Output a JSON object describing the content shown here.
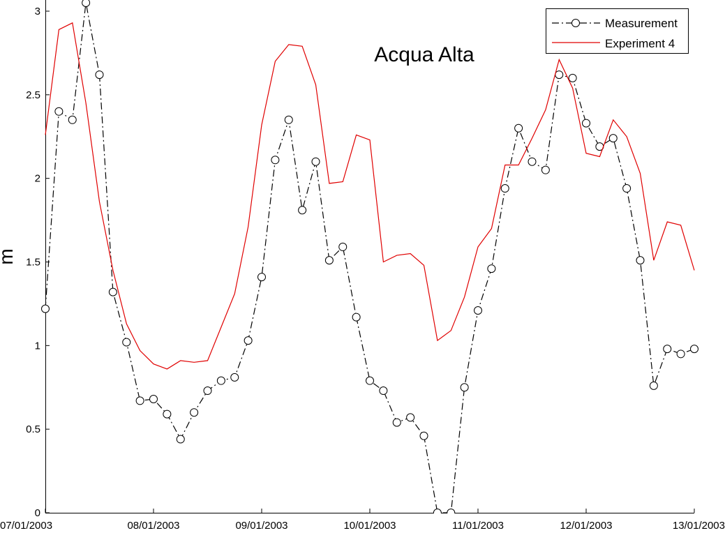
{
  "chart_data": {
    "type": "line",
    "title": "Acqua Alta",
    "xlabel": "",
    "ylabel": "m",
    "ylim": [
      0,
      3
    ],
    "xlim": [
      "07/01/2003 00:00",
      "13/01/2003 00:00"
    ],
    "yticks": [
      "0",
      "0.5",
      "1",
      "1.5",
      "2",
      "2.5",
      "3"
    ],
    "xticks": [
      "07/01/2003",
      "08/01/2003",
      "09/01/2003",
      "10/01/2003",
      "11/01/2003",
      "12/01/2003",
      "13/01/2003"
    ],
    "grid": false,
    "legend_position": "top-right",
    "series": [
      {
        "name": "Measurement",
        "color": "#000000",
        "line_style": "dash-dot",
        "marker": "circle",
        "points": [
          [
            "07/01/2003 00:00",
            1.22
          ],
          [
            "07/01/2003 03:00",
            2.4
          ],
          [
            "07/01/2003 06:00",
            2.35
          ],
          [
            "07/01/2003 09:00",
            3.05
          ],
          [
            "07/01/2003 12:00",
            2.62
          ],
          [
            "07/01/2003 15:00",
            1.32
          ],
          [
            "07/01/2003 18:00",
            1.02
          ],
          [
            "07/01/2003 21:00",
            0.67
          ],
          [
            "08/01/2003 00:00",
            0.68
          ],
          [
            "08/01/2003 03:00",
            0.59
          ],
          [
            "08/01/2003 06:00",
            0.44
          ],
          [
            "08/01/2003 09:00",
            0.6
          ],
          [
            "08/01/2003 12:00",
            0.73
          ],
          [
            "08/01/2003 15:00",
            0.79
          ],
          [
            "08/01/2003 18:00",
            0.81
          ],
          [
            "08/01/2003 21:00",
            1.03
          ],
          [
            "09/01/2003 00:00",
            1.41
          ],
          [
            "09/01/2003 03:00",
            2.11
          ],
          [
            "09/01/2003 06:00",
            2.35
          ],
          [
            "09/01/2003 09:00",
            1.81
          ],
          [
            "09/01/2003 12:00",
            2.1
          ],
          [
            "09/01/2003 15:00",
            1.51
          ],
          [
            "09/01/2003 18:00",
            1.59
          ],
          [
            "09/01/2003 21:00",
            1.17
          ],
          [
            "10/01/2003 00:00",
            0.79
          ],
          [
            "10/01/2003 03:00",
            0.73
          ],
          [
            "10/01/2003 06:00",
            0.54
          ],
          [
            "10/01/2003 09:00",
            0.57
          ],
          [
            "10/01/2003 12:00",
            0.46
          ],
          [
            "10/01/2003 15:00",
            0.0
          ],
          [
            "10/01/2003 18:00",
            0.0
          ],
          [
            "10/01/2003 21:00",
            0.75
          ],
          [
            "11/01/2003 00:00",
            1.21
          ],
          [
            "11/01/2003 03:00",
            1.46
          ],
          [
            "11/01/2003 06:00",
            1.94
          ],
          [
            "11/01/2003 09:00",
            2.3
          ],
          [
            "11/01/2003 12:00",
            2.1
          ],
          [
            "11/01/2003 15:00",
            2.05
          ],
          [
            "11/01/2003 18:00",
            2.62
          ],
          [
            "11/01/2003 21:00",
            2.6
          ],
          [
            "12/01/2003 00:00",
            2.33
          ],
          [
            "12/01/2003 03:00",
            2.19
          ],
          [
            "12/01/2003 06:00",
            2.24
          ],
          [
            "12/01/2003 09:00",
            1.94
          ],
          [
            "12/01/2003 12:00",
            1.51
          ],
          [
            "12/01/2003 15:00",
            0.76
          ],
          [
            "12/01/2003 18:00",
            0.98
          ],
          [
            "12/01/2003 21:00",
            0.95
          ],
          [
            "13/01/2003 00:00",
            0.98
          ]
        ]
      },
      {
        "name": "Experiment 4",
        "color": "#e00000",
        "line_style": "solid",
        "marker": "none",
        "points": [
          [
            "07/01/2003 00:00",
            2.26
          ],
          [
            "07/01/2003 03:00",
            2.89
          ],
          [
            "07/01/2003 06:00",
            2.93
          ],
          [
            "07/01/2003 09:00",
            2.45
          ],
          [
            "07/01/2003 12:00",
            1.86
          ],
          [
            "07/01/2003 15:00",
            1.45
          ],
          [
            "07/01/2003 18:00",
            1.13
          ],
          [
            "07/01/2003 21:00",
            0.97
          ],
          [
            "08/01/2003 00:00",
            0.89
          ],
          [
            "08/01/2003 03:00",
            0.86
          ],
          [
            "08/01/2003 06:00",
            0.91
          ],
          [
            "08/01/2003 09:00",
            0.9
          ],
          [
            "08/01/2003 12:00",
            0.91
          ],
          [
            "08/01/2003 15:00",
            1.11
          ],
          [
            "08/01/2003 18:00",
            1.31
          ],
          [
            "08/01/2003 21:00",
            1.71
          ],
          [
            "09/01/2003 00:00",
            2.32
          ],
          [
            "09/01/2003 03:00",
            2.7
          ],
          [
            "09/01/2003 06:00",
            2.8
          ],
          [
            "09/01/2003 09:00",
            2.79
          ],
          [
            "09/01/2003 12:00",
            2.56
          ],
          [
            "09/01/2003 15:00",
            1.97
          ],
          [
            "09/01/2003 18:00",
            1.98
          ],
          [
            "09/01/2003 21:00",
            2.26
          ],
          [
            "10/01/2003 00:00",
            2.23
          ],
          [
            "10/01/2003 03:00",
            1.5
          ],
          [
            "10/01/2003 06:00",
            1.54
          ],
          [
            "10/01/2003 09:00",
            1.55
          ],
          [
            "10/01/2003 12:00",
            1.48
          ],
          [
            "10/01/2003 15:00",
            1.03
          ],
          [
            "10/01/2003 18:00",
            1.09
          ],
          [
            "10/01/2003 21:00",
            1.29
          ],
          [
            "11/01/2003 00:00",
            1.59
          ],
          [
            "11/01/2003 03:00",
            1.7
          ],
          [
            "11/01/2003 06:00",
            2.08
          ],
          [
            "11/01/2003 09:00",
            2.08
          ],
          [
            "11/01/2003 12:00",
            2.24
          ],
          [
            "11/01/2003 15:00",
            2.41
          ],
          [
            "11/01/2003 18:00",
            2.71
          ],
          [
            "11/01/2003 21:00",
            2.54
          ],
          [
            "12/01/2003 00:00",
            2.15
          ],
          [
            "12/01/2003 03:00",
            2.13
          ],
          [
            "12/01/2003 06:00",
            2.35
          ],
          [
            "12/01/2003 09:00",
            2.25
          ],
          [
            "12/01/2003 12:00",
            2.03
          ],
          [
            "12/01/2003 15:00",
            1.51
          ],
          [
            "12/01/2003 18:00",
            1.74
          ],
          [
            "12/01/2003 21:00",
            1.72
          ],
          [
            "13/01/2003 00:00",
            1.45
          ]
        ]
      }
    ]
  }
}
